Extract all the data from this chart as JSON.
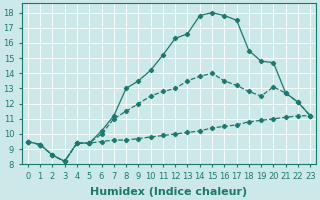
{
  "background_color": "#cce8e8",
  "grid_color": "#ffffff",
  "line_color": "#1a7a6e",
  "xlim": [
    -0.5,
    23.5
  ],
  "ylim": [
    8.0,
    18.6
  ],
  "xticks": [
    0,
    1,
    2,
    3,
    4,
    5,
    6,
    7,
    8,
    9,
    10,
    11,
    12,
    13,
    14,
    15,
    16,
    17,
    18,
    19,
    20,
    21,
    22,
    23
  ],
  "yticks": [
    8,
    9,
    10,
    11,
    12,
    13,
    14,
    15,
    16,
    17,
    18
  ],
  "xlabel": "Humidex (Indice chaleur)",
  "line1_x": [
    0,
    1,
    2,
    3,
    4,
    5,
    6,
    7,
    8,
    9,
    10,
    11,
    12,
    13,
    14,
    15,
    16,
    17,
    18,
    19,
    20,
    21,
    22,
    23
  ],
  "line1_y": [
    9.5,
    9.3,
    8.6,
    8.2,
    9.4,
    9.4,
    9.5,
    9.6,
    9.6,
    9.7,
    9.8,
    9.9,
    10.0,
    10.1,
    10.2,
    10.4,
    10.5,
    10.6,
    10.8,
    10.9,
    11.0,
    11.1,
    11.2,
    11.2
  ],
  "line2_x": [
    0,
    1,
    2,
    3,
    4,
    5,
    6,
    7,
    8,
    9,
    10,
    11,
    12,
    13,
    14,
    15,
    16,
    17,
    18,
    19,
    20,
    21,
    22,
    23
  ],
  "line2_y": [
    9.5,
    9.3,
    8.6,
    8.2,
    9.4,
    9.4,
    10.0,
    11.0,
    11.5,
    12.0,
    12.5,
    12.8,
    13.0,
    13.5,
    13.8,
    14.0,
    13.5,
    13.2,
    12.8,
    12.5,
    13.1,
    12.7,
    12.1,
    11.2
  ],
  "line3_x": [
    0,
    1,
    2,
    3,
    4,
    5,
    6,
    7,
    8,
    9,
    10,
    11,
    12,
    13,
    14,
    15,
    16,
    17,
    18,
    19,
    20,
    21,
    22,
    23
  ],
  "line3_y": [
    9.5,
    9.3,
    8.6,
    8.2,
    9.4,
    9.4,
    10.2,
    11.2,
    13.0,
    13.5,
    14.2,
    15.2,
    16.3,
    16.6,
    17.8,
    18.0,
    17.8,
    17.5,
    15.5,
    14.8,
    14.7,
    12.7,
    12.1,
    11.2
  ],
  "xlabel_fontsize": 8,
  "tick_fontsize": 6
}
